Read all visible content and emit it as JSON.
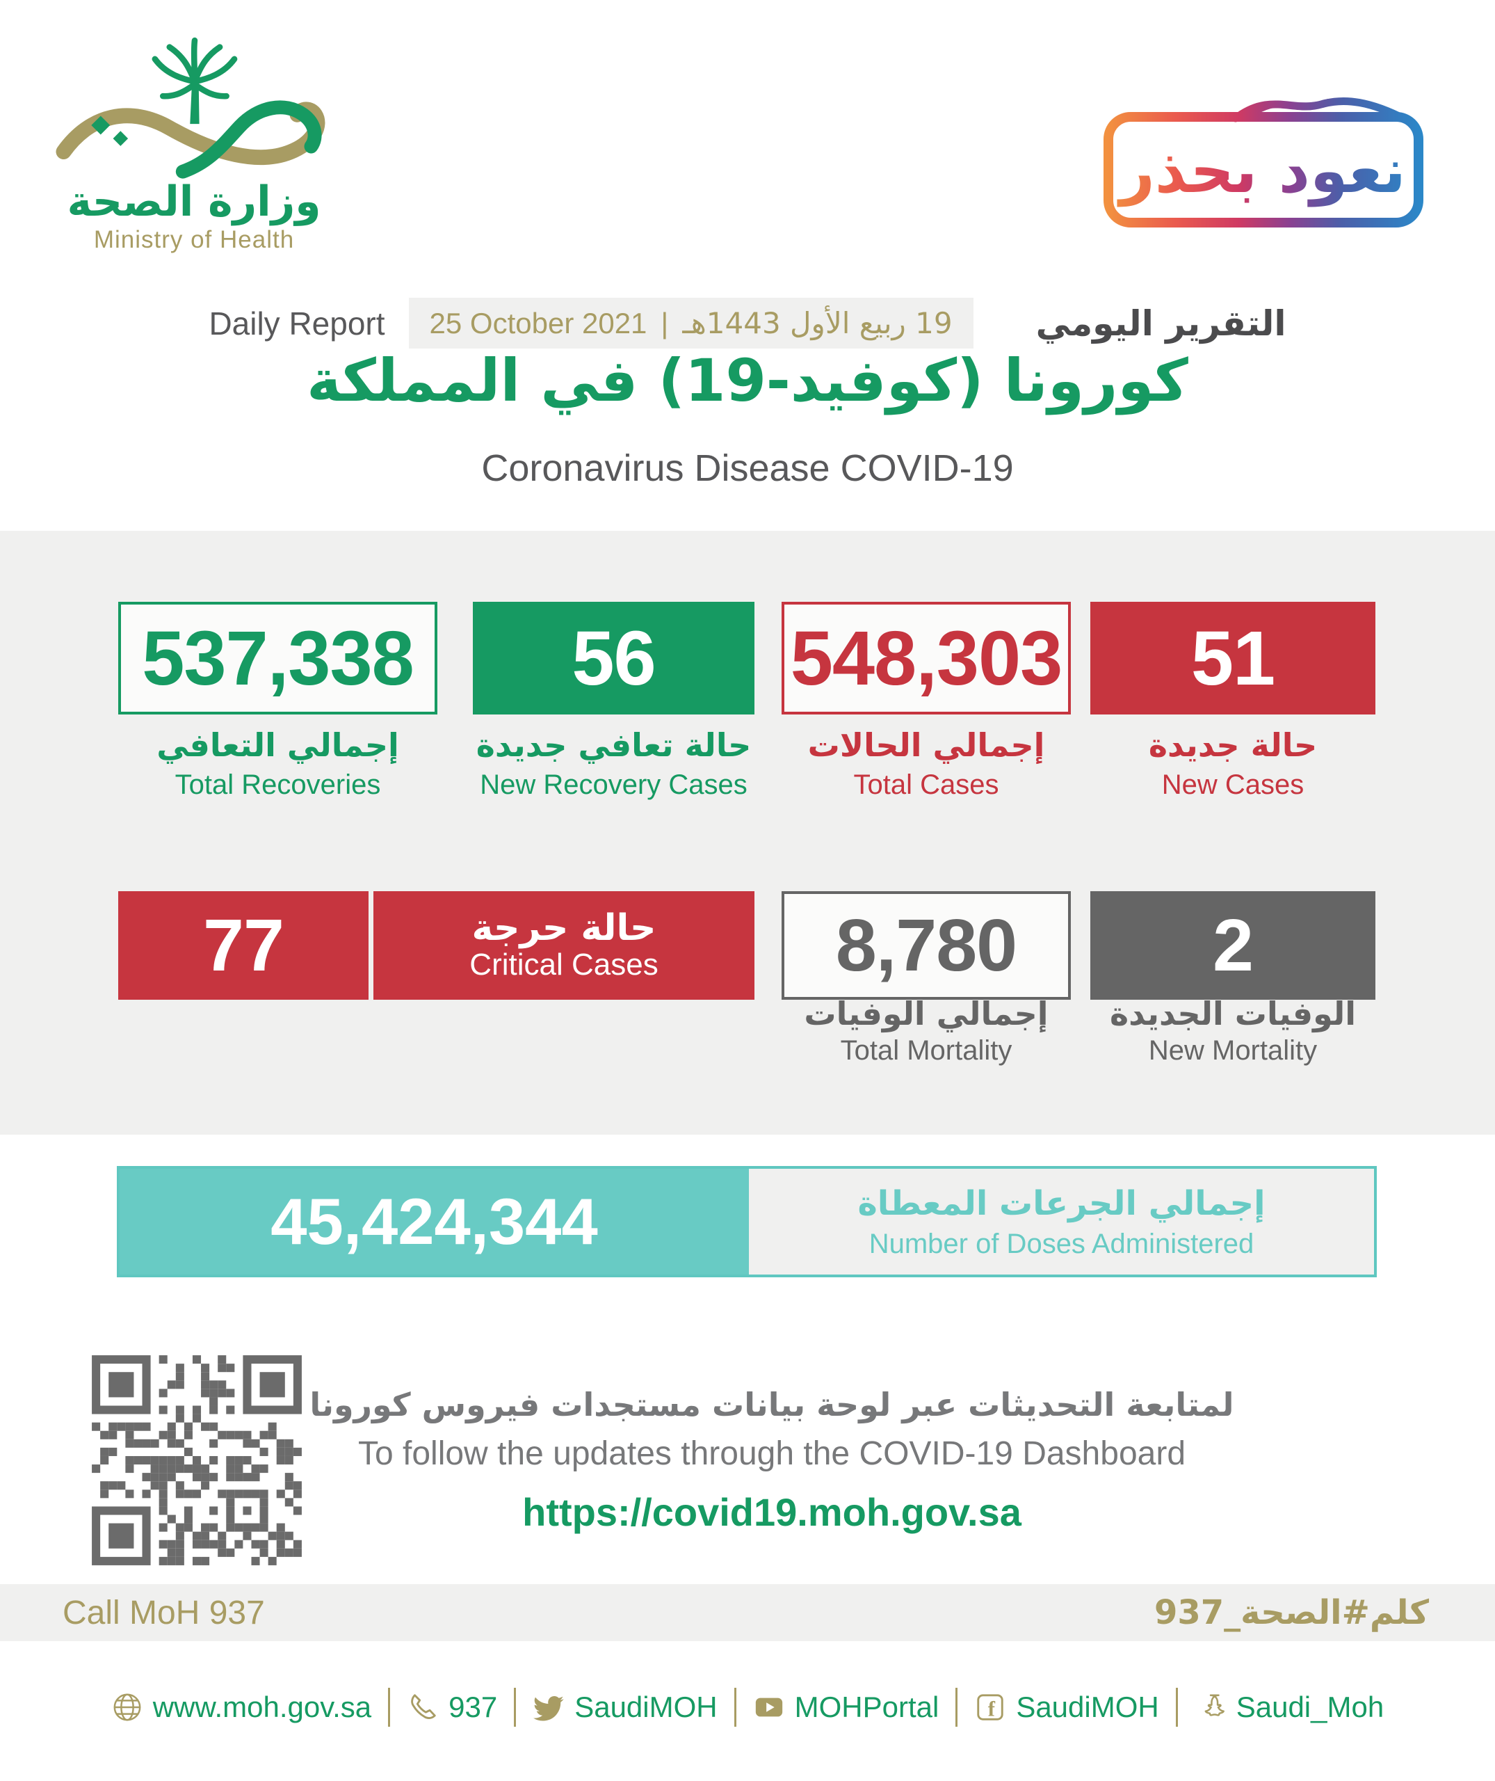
{
  "colors": {
    "green": "#169a62",
    "red": "#c6353f",
    "grey": "#656565",
    "teal": "#68cbc4",
    "gold": "#a89c63",
    "panel": "#f0f0ef",
    "dark": "#55565a"
  },
  "logo": {
    "ar": "وزارة الصحة",
    "en": "Ministry of Health"
  },
  "badge": {
    "label": "نعود بحذر"
  },
  "report": {
    "daily": "Daily Report",
    "date_en": "25 October 2021",
    "sep": "|",
    "date_hijri": "19 ربيع الأول 1443هـ",
    "label_ar": "التقرير اليومي",
    "title_ar": "كورونا (كوفيد-19) في المملكة",
    "title_en": "Coronavirus Disease COVID-19"
  },
  "stats": {
    "recoveries_total": {
      "value": "537,338",
      "ar": "إجمالي التعافي",
      "en": "Total Recoveries"
    },
    "recoveries_new": {
      "value": "56",
      "ar": "حالة تعافي جديدة",
      "en": "New Recovery Cases"
    },
    "cases_total": {
      "value": "548,303",
      "ar": "إجمالي الحالات",
      "en": "Total Cases"
    },
    "cases_new": {
      "value": "51",
      "ar": "حالة جديدة",
      "en": "New Cases"
    },
    "critical": {
      "value": "77",
      "ar": "حالة حرجة",
      "en": "Critical Cases"
    },
    "mortality_total": {
      "value": "8,780",
      "ar": "إجمالي الوفيات",
      "en": "Total Mortality"
    },
    "mortality_new": {
      "value": "2",
      "ar": "الوفيات الجديدة",
      "en": "New Mortality"
    }
  },
  "doses": {
    "value": "45,424,344",
    "ar": "إجمالي الجرعات المعطاة",
    "en": "Number of Doses Administered"
  },
  "dashboard": {
    "ar": "لمتابعة التحديثات عبر لوحة بيانات مستجدات فيروس كورونا",
    "en": "To follow the updates through the COVID-19 Dashboard",
    "url": "https://covid19.moh.gov.sa"
  },
  "call": {
    "en": "Call MoH 937",
    "ar": "كلم#الصحة_937"
  },
  "footer": {
    "fb_glyph": "f",
    "items": [
      {
        "icon": "globe-icon",
        "label": "www.moh.gov.sa"
      },
      {
        "icon": "phone-icon",
        "label": "937"
      },
      {
        "icon": "twitter-icon",
        "label": "SaudiMOH"
      },
      {
        "icon": "youtube-icon",
        "label": "MOHPortal"
      },
      {
        "icon": "facebook-icon",
        "label": "SaudiMOH"
      },
      {
        "icon": "snapchat-icon",
        "label": "Saudi_Moh"
      }
    ]
  }
}
